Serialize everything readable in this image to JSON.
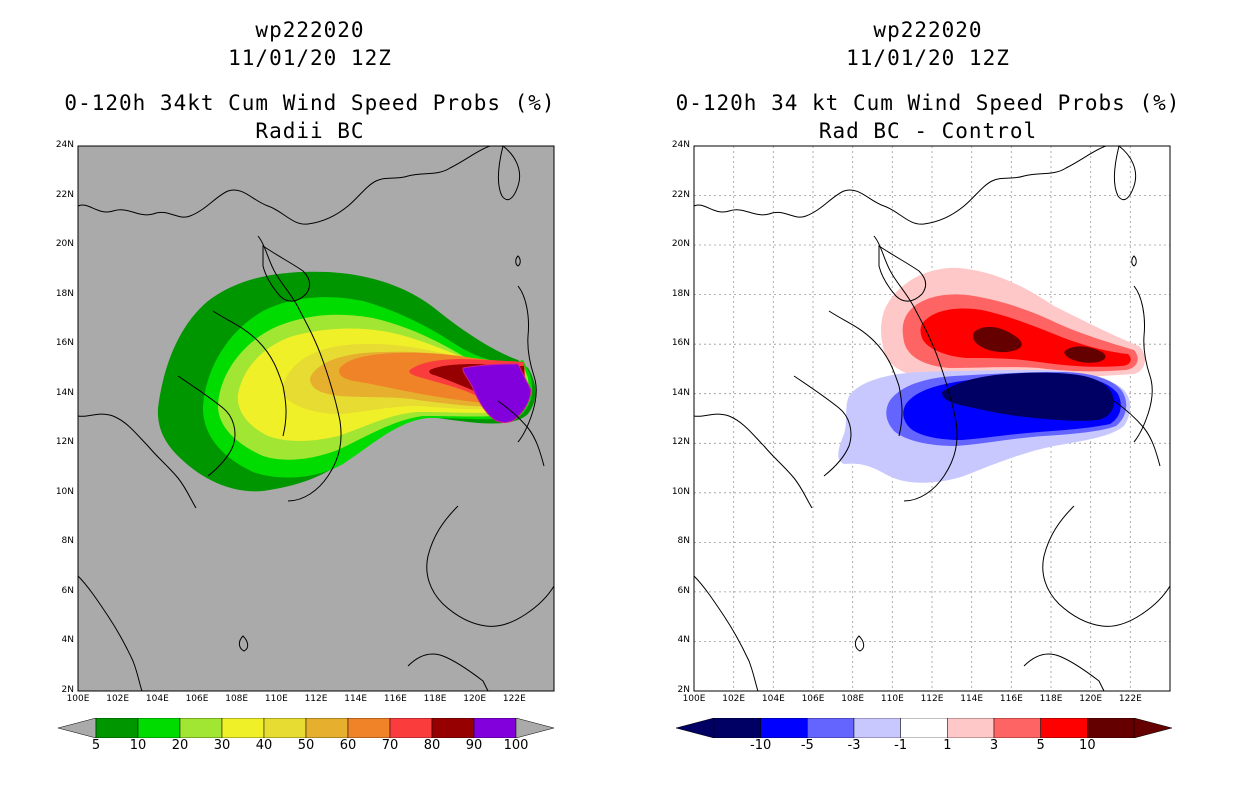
{
  "left": {
    "storm_id": "wp222020",
    "datetime": "11/01/20 12Z",
    "title": "0-120h 34kt Cum Wind Speed Probs (%)",
    "subtitle": "Radii BC",
    "colorbar": {
      "labels": [
        "5",
        "10",
        "20",
        "30",
        "40",
        "50",
        "60",
        "70",
        "80",
        "90",
        "100"
      ],
      "colors": [
        "#009600",
        "#00dc00",
        "#a0e632",
        "#f0f028",
        "#e6dc32",
        "#e6af2d",
        "#f08228",
        "#fa3c3c",
        "#960000",
        "#8200dc"
      ]
    }
  },
  "right": {
    "storm_id": "wp222020",
    "datetime": "11/01/20 12Z",
    "title": "0-120h 34 kt Cum Wind Speed Probs (%)",
    "subtitle": "Rad BC - Control",
    "colorbar": {
      "labels": [
        "-10",
        "-5",
        "-3",
        "-1",
        "1",
        "3",
        "5",
        "10"
      ],
      "colors": [
        "#000064",
        "#0000ff",
        "#6464ff",
        "#c8c8ff",
        "#ffffff",
        "#ffc8c8",
        "#ff6464",
        "#ff0000",
        "#640000"
      ]
    }
  },
  "axes": {
    "lat_labels": [
      "24N",
      "22N",
      "20N",
      "18N",
      "16N",
      "14N",
      "12N",
      "10N",
      "8N",
      "6N",
      "4N",
      "2N"
    ],
    "lon_labels": [
      "100E",
      "102E",
      "104E",
      "106E",
      "108E",
      "110E",
      "112E",
      "114E",
      "116E",
      "118E",
      "120E",
      "122E"
    ]
  },
  "colors": {
    "land_bg_left": "#aaaaaa",
    "bg_right": "#ffffff",
    "coast": "#000000",
    "grid": "#999999"
  }
}
